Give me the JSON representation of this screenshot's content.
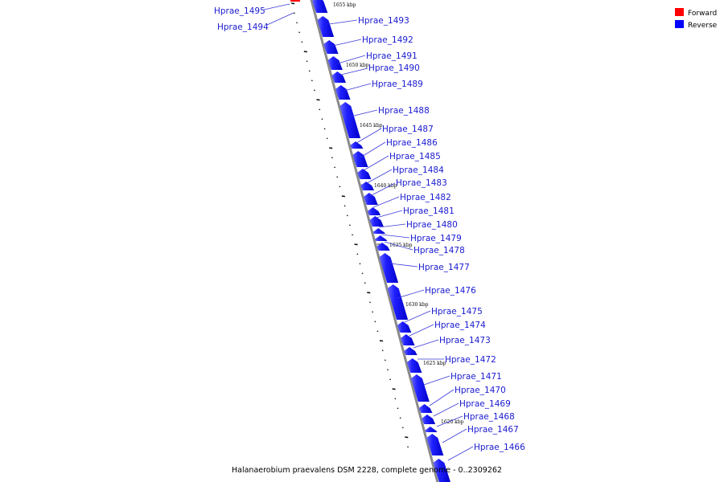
{
  "caption": "Halanaerobium praevalens DSM 2228, complete genome - 0..2309262",
  "legend": [
    {
      "label": "Forward",
      "color": "#ff0000"
    },
    {
      "label": "Reverse",
      "color": "#0000ff"
    }
  ],
  "genes": [
    {
      "label": "Hprae_1495",
      "strand": "forward"
    },
    {
      "label": "Hprae_1494",
      "strand": "forward"
    },
    {
      "label": "Hprae_1493",
      "strand": "reverse"
    },
    {
      "label": "Hprae_1492",
      "strand": "reverse"
    },
    {
      "label": "Hprae_1491",
      "strand": "reverse"
    },
    {
      "label": "Hprae_1490",
      "strand": "reverse"
    },
    {
      "label": "Hprae_1489",
      "strand": "reverse"
    },
    {
      "label": "Hprae_1488",
      "strand": "reverse"
    },
    {
      "label": "Hprae_1487",
      "strand": "reverse"
    },
    {
      "label": "Hprae_1486",
      "strand": "reverse"
    },
    {
      "label": "Hprae_1485",
      "strand": "reverse"
    },
    {
      "label": "Hprae_1484",
      "strand": "reverse"
    },
    {
      "label": "Hprae_1483",
      "strand": "reverse"
    },
    {
      "label": "Hprae_1482",
      "strand": "reverse"
    },
    {
      "label": "Hprae_1481",
      "strand": "reverse"
    },
    {
      "label": "Hprae_1480",
      "strand": "reverse"
    },
    {
      "label": "Hprae_1479",
      "strand": "reverse"
    },
    {
      "label": "Hprae_1478",
      "strand": "reverse"
    },
    {
      "label": "Hprae_1477",
      "strand": "reverse"
    },
    {
      "label": "Hprae_1476",
      "strand": "reverse"
    },
    {
      "label": "Hprae_1475",
      "strand": "reverse"
    },
    {
      "label": "Hprae_1474",
      "strand": "reverse"
    },
    {
      "label": "Hprae_1473",
      "strand": "reverse"
    },
    {
      "label": "Hprae_1472",
      "strand": "reverse"
    },
    {
      "label": "Hprae_1471",
      "strand": "reverse"
    },
    {
      "label": "Hprae_1470",
      "strand": "reverse"
    },
    {
      "label": "Hprae_1469",
      "strand": "reverse"
    },
    {
      "label": "Hprae_1468",
      "strand": "reverse"
    },
    {
      "label": "Hprae_1467",
      "strand": "reverse"
    },
    {
      "label": "Hprae_1466",
      "strand": "reverse"
    }
  ],
  "ticks": [
    "1655 kbp",
    "1650 kbp",
    "1645 kbp",
    "1640 kbp",
    "1635 kbp",
    "1630 kbp",
    "1625 kbp",
    "1620 kbp"
  ]
}
